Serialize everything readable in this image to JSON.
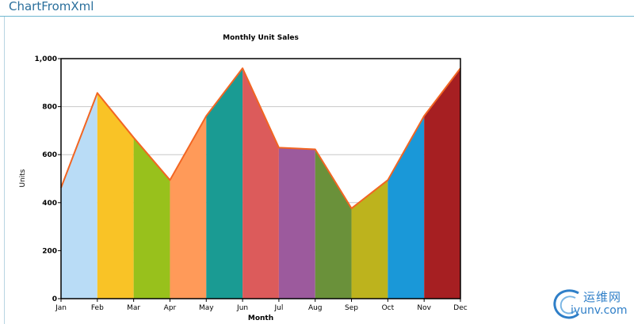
{
  "app": {
    "title": "ChartFromXml"
  },
  "chart_data": {
    "type": "area",
    "title": "Monthly Unit Sales",
    "xlabel": "Month",
    "ylabel": "Units",
    "categories": [
      "Jan",
      "Feb",
      "Mar",
      "Apr",
      "May",
      "Jun",
      "Jul",
      "Aug",
      "Sep",
      "Oct",
      "Nov",
      "Dec"
    ],
    "values": [
      462,
      857,
      671,
      494,
      761,
      960,
      629,
      622,
      376,
      494,
      761,
      960
    ],
    "ylim": [
      0,
      1000
    ],
    "yticks": [
      0,
      200,
      400,
      600,
      800,
      1000
    ],
    "ytick_labels": [
      "0",
      "200",
      "400",
      "600",
      "800",
      "1,000"
    ],
    "grid": true,
    "line_color": "#f26522",
    "segment_colors": [
      "#b9dcf6",
      "#f9c326",
      "#98c11c",
      "#ff9a59",
      "#1a9b93",
      "#dc5b5b",
      "#9c5a9d",
      "#6a913a",
      "#bdb31d",
      "#1a98d8",
      "#a61f22"
    ]
  },
  "watermark": {
    "cn": "运维网",
    "en": "iyunv.com"
  }
}
